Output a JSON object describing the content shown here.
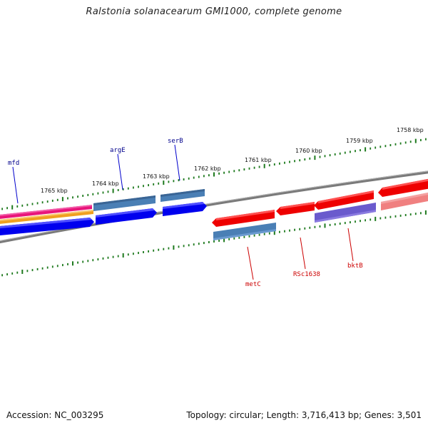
{
  "title": "Ralstonia solanacearum GMI1000, complete genome",
  "footer": {
    "accession": "Accession: NC_003295",
    "stats": "Topology: circular; Length: 3,716,413 bp; Genes: 3,501"
  },
  "colors": {
    "backbone": "#7a7a7a",
    "tick": "#1e7a1e",
    "label_forward": "#00008b",
    "label_reverse": "#cc0000",
    "cds_forward": "#0000ee",
    "cds_reverse": "#ee0000",
    "gene_blue": "#4a7fb5",
    "gene_purple": "#6a5acd",
    "gene_pink": "#f08080",
    "magenta": "#e8157a",
    "orange": "#f0a020"
  },
  "scale": {
    "kbp_labels": [
      "1765 kbp",
      "1764 kbp",
      "1763 kbp",
      "1762 kbp",
      "1761 kbp",
      "1760 kbp",
      "1759 kbp",
      "1758 kbp"
    ]
  },
  "genes": {
    "forward": [
      "mfd",
      "argE",
      "serB"
    ],
    "reverse": [
      "metC",
      "RSc1638",
      "bktB"
    ]
  }
}
